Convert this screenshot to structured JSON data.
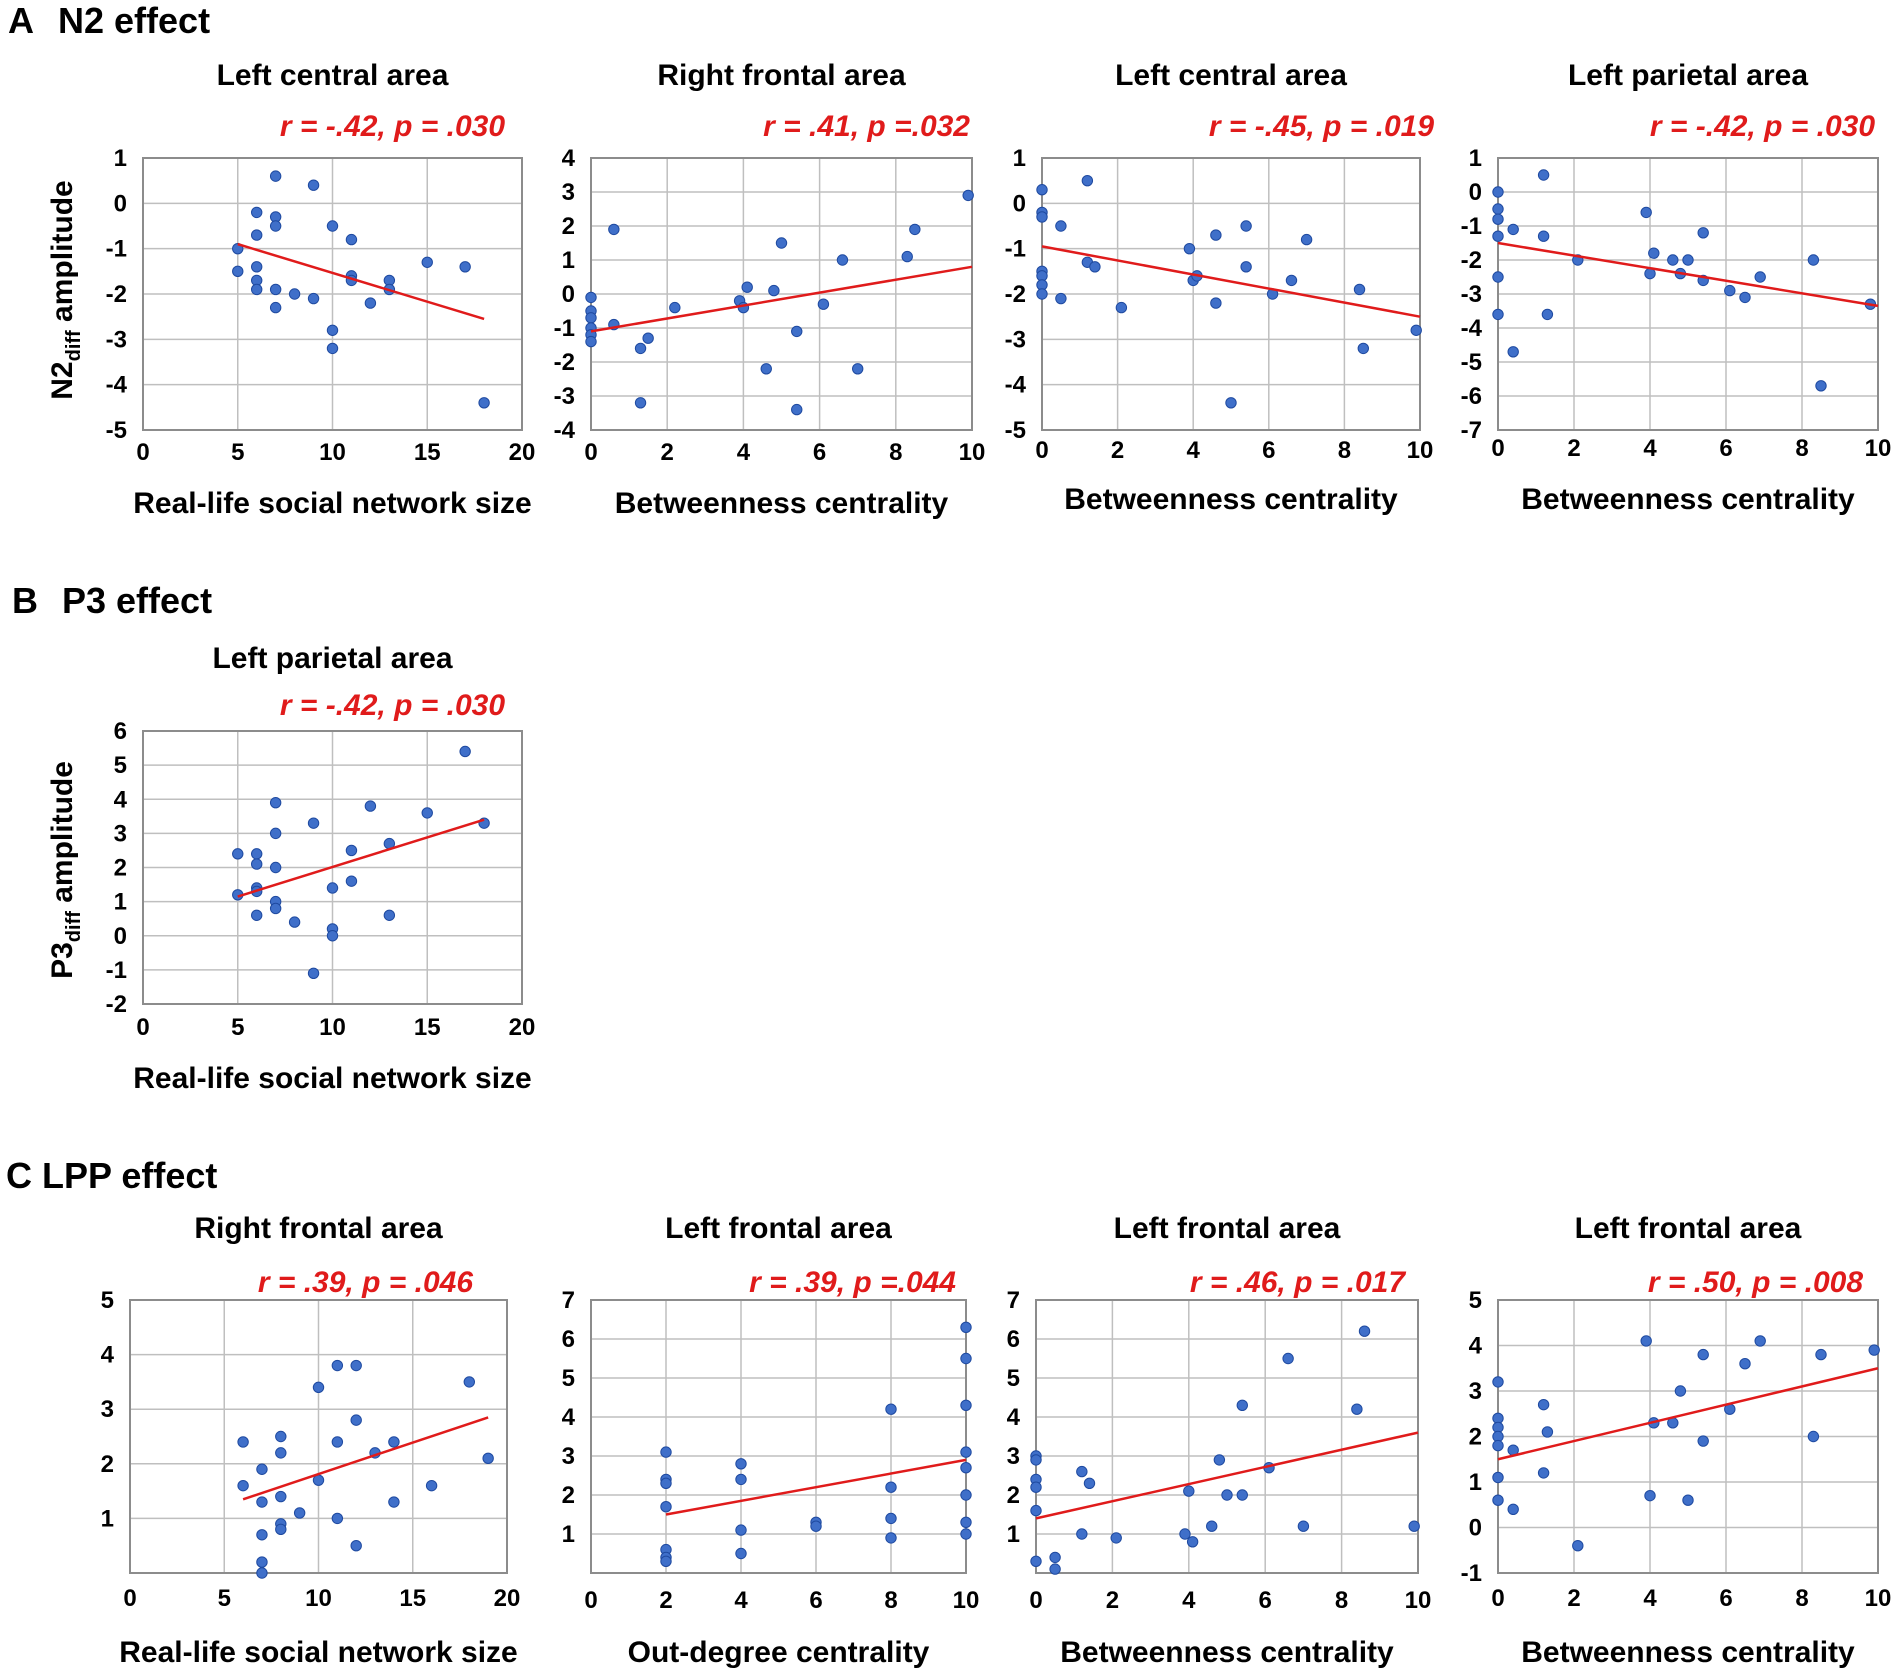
{
  "colors": {
    "point": "#3f6fc9",
    "point_edge": "#1f4aa0",
    "line": "#e01b1b",
    "grid": "#bfbfbf",
    "axis": "#8c8c8c",
    "stat": "#e01b1b"
  },
  "sections": [
    {
      "letter": "A",
      "name": "N2 effect"
    },
    {
      "letter": "B",
      "name": "P3 effect"
    },
    {
      "letter": "C",
      "name": "LPP effect"
    }
  ],
  "ylabels": [
    {
      "main": "N2",
      "sub": "diff",
      "rest": " amplitude"
    },
    {
      "main": "P3",
      "sub": "diff",
      "rest": " amplitude"
    }
  ],
  "chart_data": [
    {
      "type": "scatter",
      "section": "A",
      "title": "Left central area",
      "stat": {
        "r_label": "r",
        "r": "= -.42,",
        "p_label": "p",
        "p": "= .030"
      },
      "xlabel": "Real-life social network size",
      "ylabel": "N2diff amplitude",
      "xlim": [
        0,
        20
      ],
      "ylim": [
        -5,
        1
      ],
      "xticks": [
        0,
        5,
        10,
        15,
        20
      ],
      "yticks": [
        1,
        0,
        -1,
        -2,
        -3,
        -4,
        -5
      ],
      "points": [
        [
          5,
          -1.0
        ],
        [
          5,
          -1.5
        ],
        [
          6,
          -0.2
        ],
        [
          6,
          -0.7
        ],
        [
          6,
          -1.4
        ],
        [
          6,
          -1.7
        ],
        [
          6,
          -1.9
        ],
        [
          7,
          0.6
        ],
        [
          7,
          -0.3
        ],
        [
          7,
          -0.5
        ],
        [
          7,
          -1.9
        ],
        [
          7,
          -2.3
        ],
        [
          8,
          -2.0
        ],
        [
          9,
          0.4
        ],
        [
          9,
          -2.1
        ],
        [
          10,
          -0.5
        ],
        [
          10,
          -2.8
        ],
        [
          10,
          -3.2
        ],
        [
          11,
          -0.8
        ],
        [
          11,
          -1.6
        ],
        [
          11,
          -1.7
        ],
        [
          12,
          -2.2
        ],
        [
          13,
          -1.7
        ],
        [
          13,
          -1.9
        ],
        [
          15,
          -1.3
        ],
        [
          17,
          -1.4
        ],
        [
          18,
          -4.4
        ]
      ],
      "fit": [
        [
          5,
          -0.9
        ],
        [
          18,
          -2.55
        ]
      ]
    },
    {
      "type": "scatter",
      "section": "A",
      "title": "Right frontal area",
      "stat": {
        "r_label": "r",
        "r": "= .41,",
        "p_label": "p",
        "p": "=.032"
      },
      "xlabel": "Betweenness centrality",
      "ylabel": "",
      "xlim": [
        0,
        10
      ],
      "ylim": [
        -4,
        4
      ],
      "xticks": [
        0,
        2,
        4,
        6,
        8,
        10
      ],
      "yticks": [
        4,
        3,
        2,
        1,
        0,
        -1,
        -2,
        -3,
        -4
      ],
      "points": [
        [
          0,
          -0.1
        ],
        [
          0,
          -0.5
        ],
        [
          0,
          -0.7
        ],
        [
          0,
          -1.0
        ],
        [
          0,
          -1.2
        ],
        [
          0,
          -1.4
        ],
        [
          0.6,
          1.9
        ],
        [
          0.6,
          -0.9
        ],
        [
          1.3,
          -1.6
        ],
        [
          1.3,
          -3.2
        ],
        [
          1.5,
          -1.3
        ],
        [
          2.2,
          -0.4
        ],
        [
          3.9,
          -0.2
        ],
        [
          4.0,
          -0.4
        ],
        [
          4.1,
          0.2
        ],
        [
          4.6,
          -2.2
        ],
        [
          4.8,
          0.1
        ],
        [
          5.0,
          1.5
        ],
        [
          5.4,
          -1.1
        ],
        [
          5.4,
          -3.4
        ],
        [
          6.1,
          -0.3
        ],
        [
          6.6,
          1.0
        ],
        [
          7.0,
          -2.2
        ],
        [
          8.3,
          1.1
        ],
        [
          8.5,
          1.9
        ],
        [
          9.9,
          2.9
        ]
      ],
      "fit": [
        [
          0,
          -1.1
        ],
        [
          10,
          0.8
        ]
      ]
    },
    {
      "type": "scatter",
      "section": "A",
      "title": "Left central area",
      "stat": {
        "r_label": "r",
        "r": "= -.45,",
        "p_label": "p",
        "p": "= .019"
      },
      "xlabel": "Betweenness centrality",
      "ylabel": "",
      "xlim": [
        0,
        10
      ],
      "ylim": [
        -5,
        1
      ],
      "xticks": [
        0,
        2,
        4,
        6,
        8,
        10
      ],
      "yticks": [
        1,
        0,
        -1,
        -2,
        -3,
        -4,
        -5
      ],
      "points": [
        [
          0,
          0.3
        ],
        [
          0,
          -0.2
        ],
        [
          0,
          -0.3
        ],
        [
          0,
          -1.5
        ],
        [
          0,
          -1.6
        ],
        [
          0,
          -1.8
        ],
        [
          0,
          -2.0
        ],
        [
          0.5,
          -0.5
        ],
        [
          0.5,
          -2.1
        ],
        [
          1.2,
          0.5
        ],
        [
          1.2,
          -1.3
        ],
        [
          1.4,
          -1.4
        ],
        [
          2.1,
          -2.3
        ],
        [
          3.9,
          -1.0
        ],
        [
          4.0,
          -1.7
        ],
        [
          4.1,
          -1.6
        ],
        [
          4.6,
          -0.7
        ],
        [
          4.6,
          -2.2
        ],
        [
          5.0,
          -4.4
        ],
        [
          5.4,
          -0.5
        ],
        [
          5.4,
          -1.4
        ],
        [
          6.1,
          -2.0
        ],
        [
          6.6,
          -1.7
        ],
        [
          7.0,
          -0.8
        ],
        [
          8.4,
          -1.9
        ],
        [
          8.5,
          -3.2
        ],
        [
          9.9,
          -2.8
        ]
      ],
      "fit": [
        [
          0,
          -0.95
        ],
        [
          10,
          -2.5
        ]
      ]
    },
    {
      "type": "scatter",
      "section": "A",
      "title": "Left parietal area",
      "stat": {
        "r_label": "r",
        "r": "= -.42,",
        "p_label": "p",
        "p": "= .030"
      },
      "xlabel": "Betweenness centrality",
      "ylabel": "",
      "xlim": [
        0,
        10
      ],
      "ylim": [
        -7,
        1
      ],
      "xticks": [
        0,
        2,
        4,
        6,
        8,
        10
      ],
      "yticks": [
        1,
        0,
        -1,
        -2,
        -3,
        -4,
        -5,
        -6,
        -7
      ],
      "points": [
        [
          0,
          0.0
        ],
        [
          0,
          -0.5
        ],
        [
          0,
          -0.8
        ],
        [
          0,
          -1.3
        ],
        [
          0,
          -2.5
        ],
        [
          0,
          -3.6
        ],
        [
          0.4,
          -1.1
        ],
        [
          0.4,
          -4.7
        ],
        [
          1.2,
          0.5
        ],
        [
          1.2,
          -1.3
        ],
        [
          1.3,
          -3.6
        ],
        [
          2.1,
          -2.0
        ],
        [
          3.9,
          -0.6
        ],
        [
          4.0,
          -2.4
        ],
        [
          4.1,
          -1.8
        ],
        [
          4.6,
          -2.0
        ],
        [
          4.8,
          -2.4
        ],
        [
          5.0,
          -2.0
        ],
        [
          5.4,
          -1.2
        ],
        [
          5.4,
          -2.6
        ],
        [
          6.1,
          -2.9
        ],
        [
          6.5,
          -3.1
        ],
        [
          6.9,
          -2.5
        ],
        [
          8.3,
          -2.0
        ],
        [
          8.5,
          -5.7
        ],
        [
          9.8,
          -3.3
        ]
      ],
      "fit": [
        [
          0,
          -1.5
        ],
        [
          10,
          -3.35
        ]
      ]
    },
    {
      "type": "scatter",
      "section": "B",
      "title": "Left parietal area",
      "stat": {
        "r_label": "r",
        "r": "= -.42,",
        "p_label": "p",
        "p": "= .030"
      },
      "xlabel": "Real-life social network size",
      "ylabel": "P3diff amplitude",
      "xlim": [
        0,
        20
      ],
      "ylim": [
        -2,
        6
      ],
      "xticks": [
        0,
        5,
        10,
        15,
        20
      ],
      "yticks": [
        6,
        5,
        4,
        3,
        2,
        1,
        0,
        -1,
        -2
      ],
      "points": [
        [
          5,
          2.4
        ],
        [
          5,
          1.2
        ],
        [
          6,
          2.4
        ],
        [
          6,
          2.1
        ],
        [
          6,
          1.4
        ],
        [
          6,
          1.3
        ],
        [
          6,
          0.6
        ],
        [
          7,
          3.9
        ],
        [
          7,
          3.0
        ],
        [
          7,
          2.0
        ],
        [
          7,
          1.0
        ],
        [
          7,
          0.8
        ],
        [
          8,
          0.4
        ],
        [
          9,
          3.3
        ],
        [
          9,
          -1.1
        ],
        [
          10,
          1.4
        ],
        [
          10,
          0.2
        ],
        [
          10,
          0.0
        ],
        [
          11,
          2.5
        ],
        [
          11,
          1.6
        ],
        [
          12,
          3.8
        ],
        [
          13,
          2.7
        ],
        [
          13,
          0.6
        ],
        [
          15,
          3.6
        ],
        [
          17,
          5.4
        ],
        [
          18,
          3.3
        ]
      ],
      "fit": [
        [
          5,
          1.15
        ],
        [
          18,
          3.4
        ]
      ]
    },
    {
      "type": "scatter",
      "section": "C",
      "title": "Right frontal area",
      "stat": {
        "r_label": "r",
        "r": "= .39,",
        "p_label": "p",
        "p": "= .046"
      },
      "xlabel": "Real-life social network size",
      "ylabel": "",
      "xlim": [
        0,
        20
      ],
      "ylim": [
        0,
        5
      ],
      "xticks": [
        0,
        5,
        10,
        15,
        20
      ],
      "yticks": [
        5,
        4,
        3,
        2,
        1
      ],
      "points": [
        [
          6,
          2.4
        ],
        [
          6,
          1.6
        ],
        [
          7,
          1.9
        ],
        [
          7,
          1.3
        ],
        [
          7,
          0.7
        ],
        [
          7,
          0.2
        ],
        [
          7,
          0.0
        ],
        [
          8,
          2.5
        ],
        [
          8,
          2.2
        ],
        [
          8,
          1.4
        ],
        [
          8,
          0.9
        ],
        [
          8,
          0.8
        ],
        [
          9,
          1.1
        ],
        [
          10,
          3.4
        ],
        [
          10,
          1.7
        ],
        [
          11,
          3.8
        ],
        [
          11,
          2.4
        ],
        [
          11,
          1.0
        ],
        [
          12,
          3.8
        ],
        [
          12,
          2.8
        ],
        [
          12,
          0.5
        ],
        [
          13,
          2.2
        ],
        [
          14,
          2.4
        ],
        [
          14,
          1.3
        ],
        [
          16,
          1.6
        ],
        [
          18,
          3.5
        ],
        [
          19,
          2.1
        ]
      ],
      "fit": [
        [
          6,
          1.35
        ],
        [
          19,
          2.85
        ]
      ]
    },
    {
      "type": "scatter",
      "section": "C",
      "title": "Left frontal area",
      "stat": {
        "r_label": "r",
        "r": "= .39,",
        "p_label": "p",
        "p": "=.044"
      },
      "xlabel": "Out-degree centrality",
      "ylabel": "",
      "xlim": [
        0,
        10
      ],
      "ylim": [
        0,
        7
      ],
      "xticks": [
        0,
        2,
        4,
        6,
        8,
        10
      ],
      "yticks": [
        7,
        6,
        5,
        4,
        3,
        2,
        1
      ],
      "points": [
        [
          2,
          3.1
        ],
        [
          2,
          2.4
        ],
        [
          2,
          2.3
        ],
        [
          2,
          1.7
        ],
        [
          2,
          0.6
        ],
        [
          2,
          0.4
        ],
        [
          2,
          0.3
        ],
        [
          4,
          2.8
        ],
        [
          4,
          2.4
        ],
        [
          4,
          1.1
        ],
        [
          4,
          0.5
        ],
        [
          6,
          1.3
        ],
        [
          6,
          1.2
        ],
        [
          8,
          4.2
        ],
        [
          8,
          2.2
        ],
        [
          8,
          1.4
        ],
        [
          8,
          0.9
        ],
        [
          10,
          6.3
        ],
        [
          10,
          5.5
        ],
        [
          10,
          4.3
        ],
        [
          10,
          3.1
        ],
        [
          10,
          2.7
        ],
        [
          10,
          2.0
        ],
        [
          10,
          1.3
        ],
        [
          10,
          1.0
        ]
      ],
      "fit": [
        [
          2,
          1.5
        ],
        [
          10,
          2.9
        ]
      ]
    },
    {
      "type": "scatter",
      "section": "C",
      "title": "Left frontal area",
      "stat": {
        "r_label": "r",
        "r": "= .46,",
        "p_label": "p",
        "p": "= .017"
      },
      "xlabel": "Betweenness centrality",
      "ylabel": "",
      "xlim": [
        0,
        10
      ],
      "ylim": [
        0,
        7
      ],
      "xticks": [
        0,
        2,
        4,
        6,
        8,
        10
      ],
      "yticks": [
        7,
        6,
        5,
        4,
        3,
        2,
        1
      ],
      "points": [
        [
          0,
          3.0
        ],
        [
          0,
          2.9
        ],
        [
          0,
          2.4
        ],
        [
          0,
          2.2
        ],
        [
          0,
          1.6
        ],
        [
          0,
          0.3
        ],
        [
          0.5,
          0.4
        ],
        [
          0.5,
          0.1
        ],
        [
          1.2,
          2.6
        ],
        [
          1.2,
          1.0
        ],
        [
          1.4,
          2.3
        ],
        [
          2.1,
          0.9
        ],
        [
          3.9,
          1.0
        ],
        [
          4.0,
          2.1
        ],
        [
          4.1,
          0.8
        ],
        [
          4.6,
          1.2
        ],
        [
          4.8,
          2.9
        ],
        [
          5.0,
          2.0
        ],
        [
          5.4,
          4.3
        ],
        [
          5.4,
          2.0
        ],
        [
          6.1,
          2.7
        ],
        [
          6.6,
          5.5
        ],
        [
          7.0,
          1.2
        ],
        [
          8.4,
          4.2
        ],
        [
          8.6,
          6.2
        ],
        [
          9.9,
          1.2
        ]
      ],
      "fit": [
        [
          0,
          1.4
        ],
        [
          10,
          3.6
        ]
      ]
    },
    {
      "type": "scatter",
      "section": "C",
      "title": "Left frontal area",
      "stat": {
        "r_label": "r",
        "r": "= .50,",
        "p_label": "p",
        "p": "= .008"
      },
      "xlabel": "Betweenness centrality",
      "ylabel": "",
      "xlim": [
        0,
        10
      ],
      "ylim": [
        -1,
        5
      ],
      "xticks": [
        0,
        2,
        4,
        6,
        8,
        10
      ],
      "yticks": [
        5,
        4,
        3,
        2,
        1,
        0,
        -1
      ],
      "points": [
        [
          0,
          3.2
        ],
        [
          0,
          2.4
        ],
        [
          0,
          2.2
        ],
        [
          0,
          2.0
        ],
        [
          0,
          1.8
        ],
        [
          0,
          1.1
        ],
        [
          0,
          0.6
        ],
        [
          0.4,
          1.7
        ],
        [
          0.4,
          0.4
        ],
        [
          1.2,
          2.7
        ],
        [
          1.2,
          1.2
        ],
        [
          1.3,
          2.1
        ],
        [
          2.1,
          -0.4
        ],
        [
          3.9,
          4.1
        ],
        [
          4.0,
          0.7
        ],
        [
          4.1,
          2.3
        ],
        [
          4.6,
          2.3
        ],
        [
          4.8,
          3.0
        ],
        [
          5.0,
          0.6
        ],
        [
          5.4,
          3.8
        ],
        [
          5.4,
          1.9
        ],
        [
          6.1,
          2.6
        ],
        [
          6.5,
          3.6
        ],
        [
          6.9,
          4.1
        ],
        [
          8.3,
          2.0
        ],
        [
          8.5,
          3.8
        ],
        [
          9.9,
          3.9
        ]
      ],
      "fit": [
        [
          0,
          1.5
        ],
        [
          10,
          3.5
        ]
      ]
    }
  ]
}
